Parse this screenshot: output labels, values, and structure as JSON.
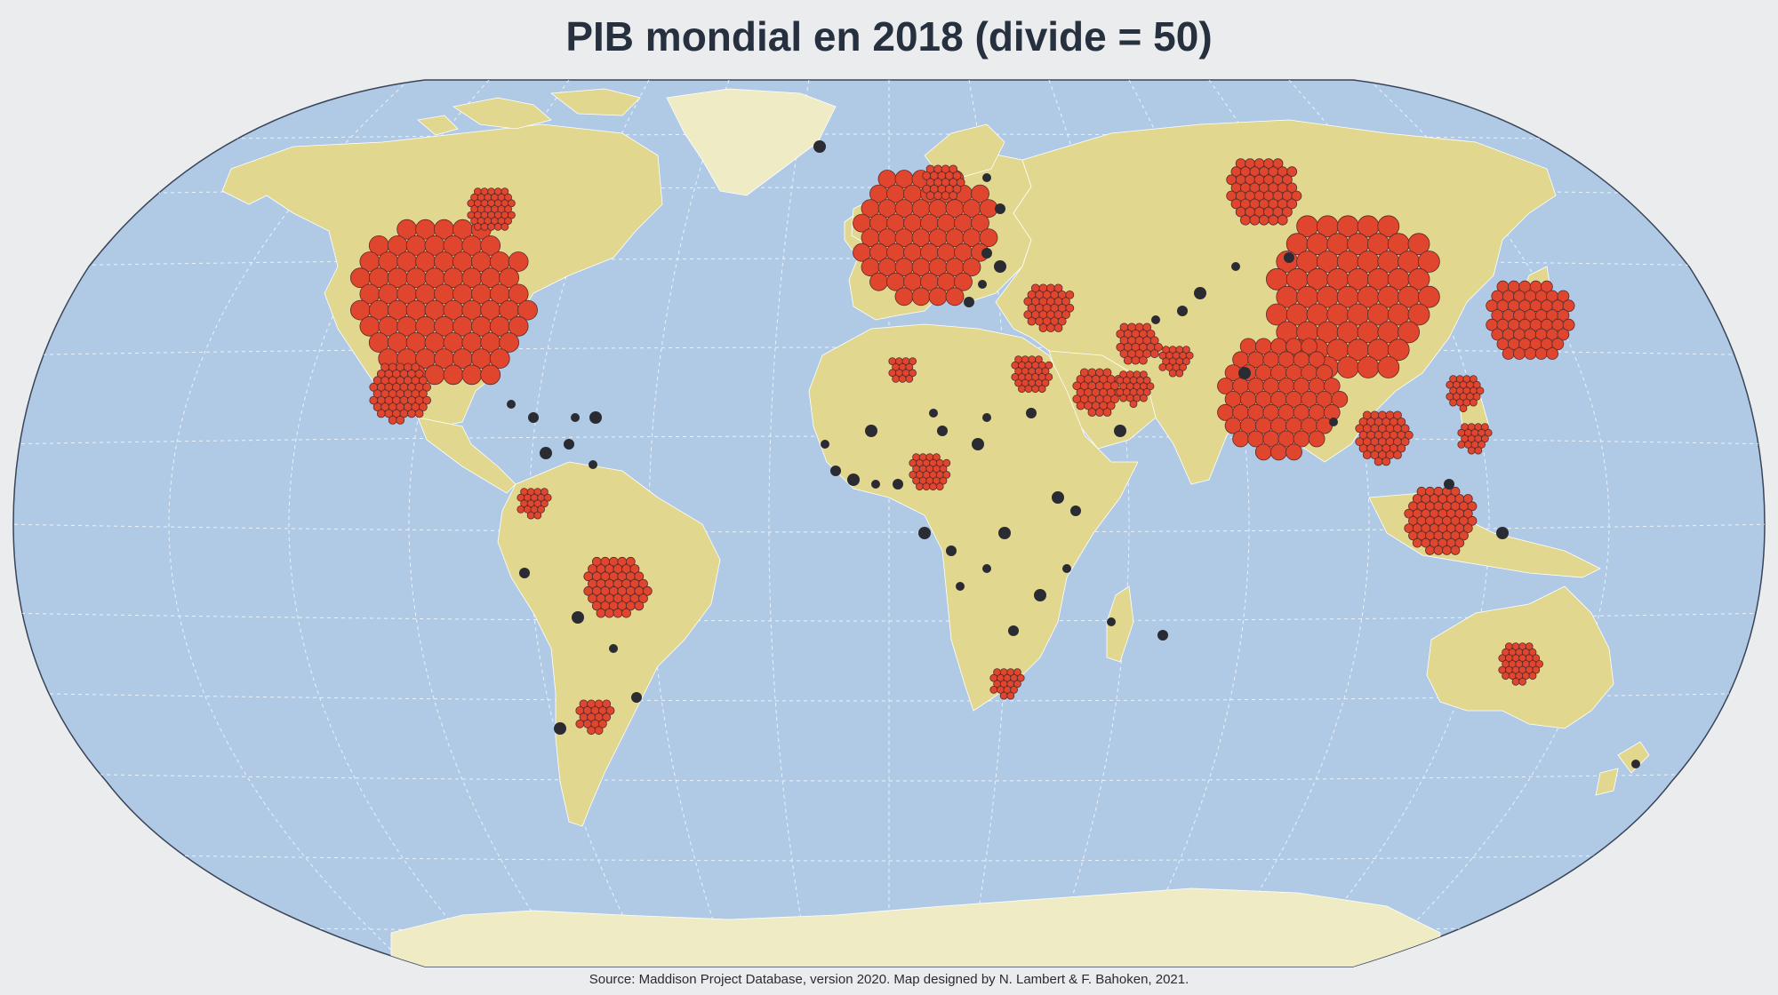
{
  "map": {
    "title": "PIB mondial en 2018 (divide = 50)",
    "source": "Source: Maddison Project Database, version 2020. Map designed by N. Lambert & F. Bahoken, 2021.",
    "projection": "Winkel Tripel",
    "colors": {
      "background": "#ebecee",
      "ocean": "#b0cae6",
      "land": "#e2d78e",
      "land_light": "#efebc4",
      "dot_fill": "#e0452e",
      "dot_stroke": "#5a2a2a",
      "small_dot": "#2b2b33",
      "graticule": "#ffffff"
    },
    "symbols": {
      "meaning": "Each dot represents a share of GDP (dorling / dot density with divide = 50)",
      "large_clusters": [
        "United States",
        "China",
        "India",
        "Japan",
        "Europe",
        "Russia",
        "Brazil",
        "Indonesia",
        "Mexico",
        "Australia",
        "Argentina",
        "South Africa",
        "Nigeria",
        "Egypt",
        "Iran",
        "Turkey",
        "Saudi Arabia",
        "South Korea",
        "Philippines",
        "Thailand"
      ]
    }
  }
}
